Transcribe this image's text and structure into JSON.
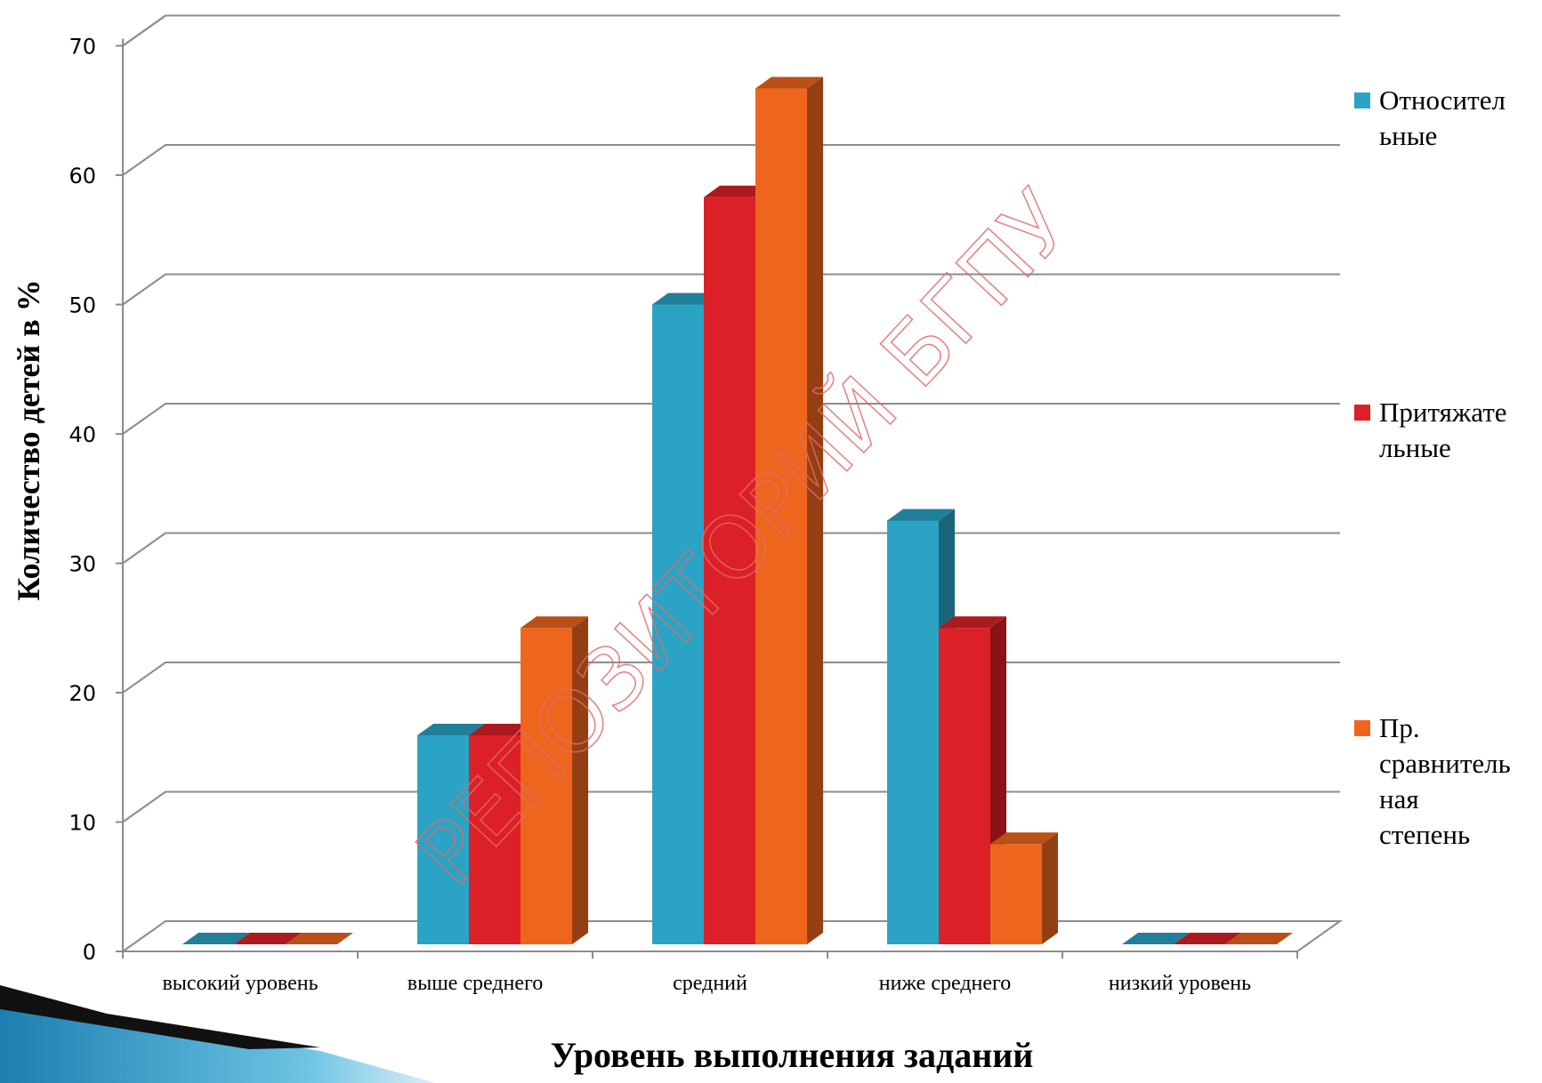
{
  "chart_data": {
    "type": "bar",
    "title": "",
    "xlabel": "Уровень выполнения заданий",
    "ylabel": "Количество детей в %",
    "ylim": [
      0,
      70
    ],
    "yticks": [
      0,
      10,
      20,
      30,
      40,
      50,
      60,
      70
    ],
    "categories": [
      "высокий уровень",
      "выше среднего",
      "средний",
      "ниже среднего",
      "низкий уровень"
    ],
    "series": [
      {
        "name": "Относительные",
        "legend_lines": [
          "Относител",
          "ьные"
        ],
        "color": "#2BA3C4",
        "values": [
          0,
          16.7,
          50,
          33.3,
          0
        ]
      },
      {
        "name": "Притяжательные",
        "legend_lines": [
          "Притяжате",
          "льные"
        ],
        "color": "#DC2027",
        "values": [
          0,
          16.7,
          58.3,
          25,
          0
        ]
      },
      {
        "name": "Пр. сравнительная степень",
        "legend_lines": [
          "Пр.",
          "сравнитель",
          "ная",
          "степень"
        ],
        "color": "#EE661E",
        "values": [
          0,
          25,
          66.7,
          8.3,
          0
        ]
      }
    ],
    "grid": true,
    "legend": "right",
    "style": "3d-clustered-column"
  },
  "watermark": "РЕПОЗИТОРИЙ БГПУ"
}
